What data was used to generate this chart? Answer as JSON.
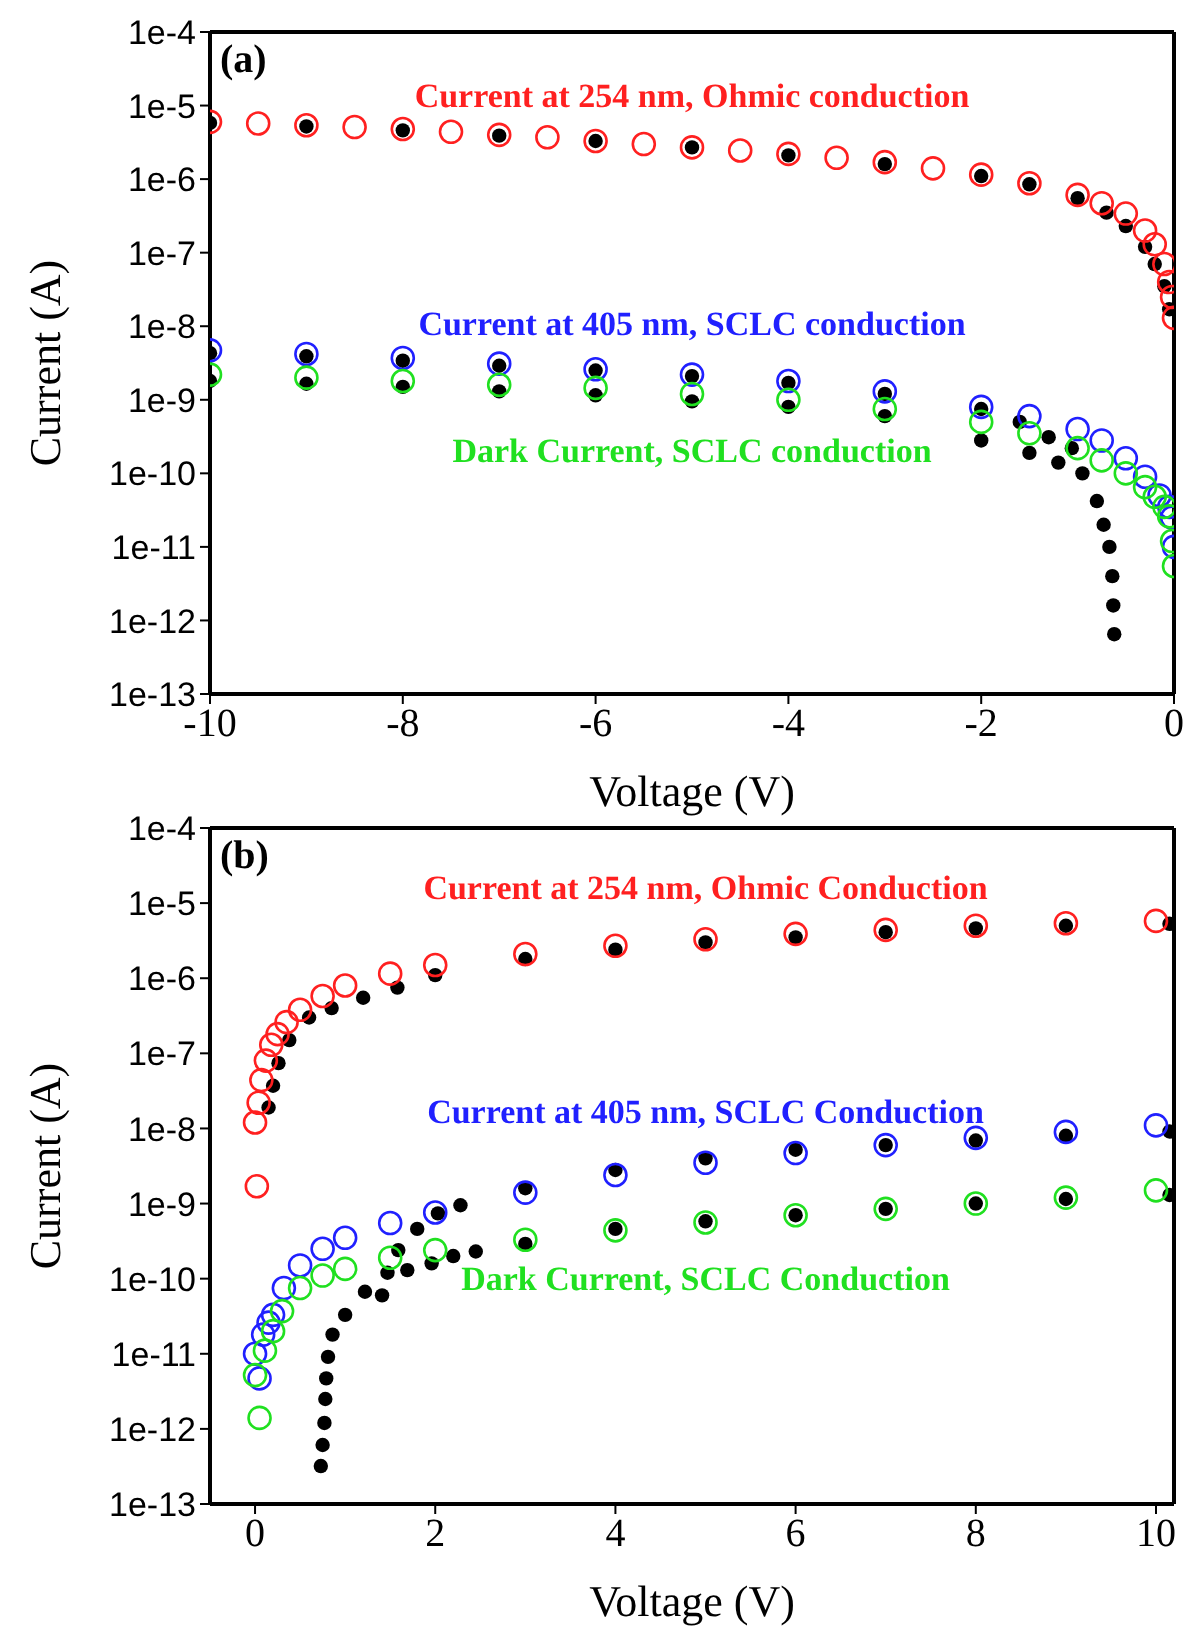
{
  "chart_data": [
    {
      "type": "scatter",
      "annotations": [
        "(a)"
      ],
      "xlabel": "Voltage (V)",
      "ylabel": "Current (A)",
      "xlim": [
        -10,
        0
      ],
      "xticks": [
        -10,
        -8,
        -6,
        -4,
        -2,
        0
      ],
      "ylim": [
        1e-13,
        0.0001
      ],
      "yticks": [
        {
          "value": 0.0001,
          "label": "1e-4"
        },
        {
          "value": 1e-05,
          "label": "1e-5"
        },
        {
          "value": 1e-06,
          "label": "1e-6"
        },
        {
          "value": 1e-07,
          "label": "1e-7"
        },
        {
          "value": 1e-08,
          "label": "1e-8"
        },
        {
          "value": 1e-09,
          "label": "1e-9"
        },
        {
          "value": 1e-10,
          "label": "1e-10"
        },
        {
          "value": 1e-11,
          "label": "1e-11"
        },
        {
          "value": 1e-12,
          "label": "1e-12"
        },
        {
          "value": 1e-13,
          "label": "1e-13"
        }
      ],
      "log": "y",
      "marker": "circle",
      "series": [
        {
          "name": "Current at 254 nm, Ohmic conduction",
          "color": "#ff2020",
          "x": [
            -10,
            -9.5,
            -9,
            -8.5,
            -8,
            -7.5,
            -7,
            -6.5,
            -6,
            -5.5,
            -5,
            -4.5,
            -4,
            -3.5,
            -3,
            -2.5,
            -2,
            -1.5,
            -1,
            -0.75,
            -0.5,
            -0.3,
            -0.2,
            -0.1,
            -0.05,
            -0.02,
            0
          ],
          "values": [
            6e-06,
            5.7e-06,
            5.4e-06,
            5.1e-06,
            4.8e-06,
            4.4e-06,
            4e-06,
            3.7e-06,
            3.3e-06,
            3e-06,
            2.7e-06,
            2.45e-06,
            2.2e-06,
            1.95e-06,
            1.7e-06,
            1.4e-06,
            1.15e-06,
            8.8e-07,
            6.1e-07,
            4.7e-07,
            3.4e-07,
            2e-07,
            1.3e-07,
            7e-08,
            4e-08,
            2.5e-08,
            1.3e-08
          ]
        },
        {
          "name": "Current at 405 nm, SCLC conduction",
          "color": "#2020ff",
          "x": [
            -10,
            -9,
            -8,
            -7,
            -6,
            -5,
            -4,
            -3,
            -2,
            -1.5,
            -1,
            -0.75,
            -0.5,
            -0.3,
            -0.15,
            -0.05,
            -0.02,
            0
          ],
          "values": [
            4.7e-09,
            4.2e-09,
            3.7e-09,
            3.1e-09,
            2.6e-09,
            2.2e-09,
            1.8e-09,
            1.3e-09,
            8e-10,
            6e-10,
            4e-10,
            2.8e-10,
            1.6e-10,
            9e-11,
            5e-11,
            3.5e-11,
            2.5e-11,
            1e-11
          ]
        },
        {
          "name": "Dark Current, SCLC conduction",
          "color": "#20e020",
          "x": [
            -10,
            -9,
            -8,
            -7,
            -6,
            -5,
            -4,
            -3,
            -2,
            -1.5,
            -1,
            -0.75,
            -0.5,
            -0.3,
            -0.2,
            -0.1,
            -0.05,
            -0.02,
            0
          ],
          "values": [
            2.2e-09,
            2e-09,
            1.8e-09,
            1.6e-09,
            1.45e-09,
            1.2e-09,
            1e-09,
            7.5e-10,
            5e-10,
            3.5e-10,
            2.2e-10,
            1.5e-10,
            1e-10,
            6.5e-11,
            4.8e-11,
            3.5e-11,
            2.6e-11,
            1.2e-11,
            5.5e-12
          ]
        },
        {
          "color": "#000000",
          "x": [
            -10,
            -9,
            -8,
            -7,
            -6,
            -5,
            -4,
            -3,
            -2,
            -1.5,
            -1,
            -0.7,
            -0.5,
            -0.3,
            -0.2,
            -0.1,
            -0.05
          ],
          "values": [
            5.8e-06,
            5.2e-06,
            4.6e-06,
            3.9e-06,
            3.3e-06,
            2.7e-06,
            2.1e-06,
            1.6e-06,
            1.1e-06,
            8.5e-07,
            5.5e-07,
            3.5e-07,
            2.3e-07,
            1.2e-07,
            7e-08,
            3.5e-08,
            1.7e-08
          ]
        },
        {
          "color": "#000000",
          "x": [
            -10,
            -9,
            -8,
            -7,
            -6,
            -5,
            -4,
            -3,
            -2,
            -1.6,
            -1.3,
            -1.06
          ],
          "values": [
            4.3e-09,
            3.9e-09,
            3.4e-09,
            2.9e-09,
            2.5e-09,
            2.1e-09,
            1.7e-09,
            1.2e-09,
            7.5e-10,
            5e-10,
            3.1e-10,
            2.2e-10
          ]
        },
        {
          "color": "#000000",
          "x": [
            -10,
            -9,
            -8,
            -7,
            -6,
            -5,
            -4,
            -3,
            -2,
            -1.5,
            -1.2,
            -0.95,
            -0.8,
            -0.73,
            -0.67,
            -0.64,
            -0.63,
            -0.62
          ],
          "values": [
            1.8e-09,
            1.65e-09,
            1.5e-09,
            1.3e-09,
            1.15e-09,
            9.5e-10,
            8e-10,
            6e-10,
            2.8e-10,
            1.9e-10,
            1.4e-10,
            1e-10,
            4.2e-11,
            2e-11,
            1e-11,
            4e-12,
            1.6e-12,
            6.5e-13
          ]
        }
      ]
    },
    {
      "type": "scatter",
      "annotations": [
        "(b)"
      ],
      "xlabel": "Voltage (V)",
      "ylabel": "Current (A)",
      "xlim": [
        -0.5,
        10.2
      ],
      "xticks": [
        0,
        2,
        4,
        6,
        8,
        10
      ],
      "ylim": [
        1e-13,
        0.0001
      ],
      "yticks": [
        {
          "value": 0.0001,
          "label": "1e-4"
        },
        {
          "value": 1e-05,
          "label": "1e-5"
        },
        {
          "value": 1e-06,
          "label": "1e-6"
        },
        {
          "value": 1e-07,
          "label": "1e-7"
        },
        {
          "value": 1e-08,
          "label": "1e-8"
        },
        {
          "value": 1e-09,
          "label": "1e-9"
        },
        {
          "value": 1e-10,
          "label": "1e-10"
        },
        {
          "value": 1e-11,
          "label": "1e-11"
        },
        {
          "value": 1e-12,
          "label": "1e-12"
        },
        {
          "value": 1e-13,
          "label": "1e-13"
        }
      ],
      "log": "y",
      "marker": "circle",
      "series": [
        {
          "name": "Current at 254 nm, Ohmic Conduction",
          "color": "#ff2020",
          "x": [
            0,
            0.02,
            0.04,
            0.07,
            0.12,
            0.18,
            0.25,
            0.35,
            0.5,
            0.75,
            1,
            1.5,
            2,
            3,
            4,
            5,
            6,
            7,
            8,
            9,
            10
          ],
          "values": [
            1.2e-08,
            1.7e-09,
            2.2e-08,
            4.4e-08,
            8e-08,
            1.3e-07,
            1.8e-07,
            2.6e-07,
            3.8e-07,
            5.8e-07,
            8e-07,
            1.15e-06,
            1.5e-06,
            2.1e-06,
            2.7e-06,
            3.3e-06,
            3.9e-06,
            4.4e-06,
            5e-06,
            5.4e-06,
            5.8e-06
          ]
        },
        {
          "name": "Current at 405 nm, SCLC Conduction",
          "color": "#2020ff",
          "x": [
            0,
            0.05,
            0.09,
            0.15,
            0.2,
            0.32,
            0.5,
            0.75,
            1,
            1.5,
            2,
            3,
            4,
            5,
            6,
            7,
            8,
            9,
            10
          ],
          "values": [
            1e-11,
            4.7e-12,
            1.8e-11,
            2.6e-11,
            3.3e-11,
            7.5e-11,
            1.5e-10,
            2.5e-10,
            3.5e-10,
            5.5e-10,
            7.6e-10,
            1.4e-09,
            2.4e-09,
            3.5e-09,
            4.7e-09,
            6e-09,
            7.5e-09,
            9e-09,
            1.1e-08
          ]
        },
        {
          "name": "Dark Current, SCLC Conduction",
          "color": "#20e020",
          "x": [
            0,
            0.05,
            0.11,
            0.2,
            0.3,
            0.5,
            0.75,
            1,
            1.5,
            2,
            3,
            4,
            5,
            6,
            7,
            8,
            9,
            10
          ],
          "values": [
            5.2e-12,
            1.4e-12,
            1.1e-11,
            2e-11,
            3.7e-11,
            7.5e-11,
            1.1e-10,
            1.35e-10,
            1.9e-10,
            2.4e-10,
            3.3e-10,
            4.4e-10,
            5.6e-10,
            7e-10,
            8.5e-10,
            1e-09,
            1.2e-09,
            1.5e-09
          ]
        },
        {
          "color": "#000000",
          "x": [
            0.15,
            0.2,
            0.26,
            0.38,
            0.6,
            0.85,
            1.2,
            1.58,
            2,
            3,
            4,
            5,
            6,
            7,
            8,
            9,
            10.15
          ],
          "values": [
            1.9e-08,
            3.7e-08,
            7.4e-08,
            1.5e-07,
            3e-07,
            4e-07,
            5.5e-07,
            7.5e-07,
            1.1e-06,
            1.8e-06,
            2.4e-06,
            3e-06,
            3.5e-06,
            4.1e-06,
            4.6e-06,
            5e-06,
            5.3e-06
          ]
        },
        {
          "color": "#000000",
          "x": [
            1.8,
            2.03,
            2.28,
            3,
            4,
            5,
            6,
            7,
            8,
            9,
            10.15
          ],
          "values": [
            4.6e-10,
            7.4e-10,
            9.5e-10,
            1.6e-09,
            2.8e-09,
            4e-09,
            5.2e-09,
            6e-09,
            6.9e-09,
            8e-09,
            9.1e-09
          ]
        },
        {
          "color": "#000000",
          "x": [
            0.73,
            0.75,
            0.77,
            0.78,
            0.79,
            0.81,
            0.86,
            1,
            1.22,
            1.41,
            1.47,
            1.59,
            1.69,
            1.96,
            2.2,
            2.45,
            3,
            4,
            5,
            6,
            7,
            8,
            9,
            10.15
          ],
          "values": [
            3.2e-13,
            6.1e-13,
            1.2e-12,
            2.5e-12,
            4.7e-12,
            9.1e-12,
            1.8e-11,
            3.3e-11,
            6.7e-11,
            6e-11,
            1.2e-10,
            2.4e-10,
            1.3e-10,
            1.6e-10,
            2e-10,
            2.3e-10,
            2.9e-10,
            4.6e-10,
            5.8e-10,
            7e-10,
            8.5e-10,
            1e-09,
            1.15e-09,
            1.3e-09
          ]
        }
      ]
    }
  ]
}
